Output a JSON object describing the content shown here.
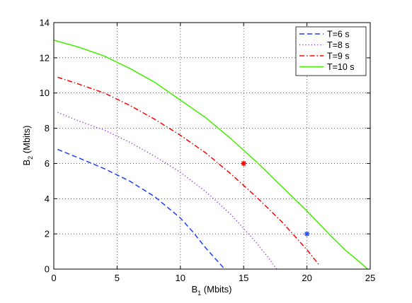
{
  "chart_data": {
    "type": "line",
    "title": "",
    "xlabel": {
      "main": "B",
      "sub": "1",
      "rest": " (Mbits)"
    },
    "ylabel": {
      "main": "B",
      "sub": "2",
      "rest": " (Mbits)"
    },
    "xlim": [
      0,
      25
    ],
    "ylim": [
      0,
      14
    ],
    "xticks": [
      "0",
      "5",
      "10",
      "15",
      "20",
      "25"
    ],
    "yticks": [
      "0",
      "2",
      "4",
      "6",
      "8",
      "10",
      "12",
      "14"
    ],
    "grid": true,
    "legend_position": "top-right",
    "series": [
      {
        "name": "T=6 s",
        "color": "#1f3fff",
        "style": "dashed",
        "x": [
          0.3,
          2,
          4,
          6,
          8,
          10,
          11,
          12,
          13,
          13.5
        ],
        "y": [
          6.8,
          6.3,
          5.7,
          5.0,
          4.1,
          2.9,
          2.1,
          1.2,
          0.4,
          0.0
        ]
      },
      {
        "name": "T=8 s",
        "color": "#9a30e0",
        "style": "dotted",
        "x": [
          0.3,
          2,
          4,
          6,
          8,
          10,
          12,
          14,
          15,
          16,
          17,
          17.6
        ],
        "y": [
          8.9,
          8.4,
          7.9,
          7.2,
          6.4,
          5.5,
          4.4,
          3.1,
          2.3,
          1.5,
          0.6,
          0.0
        ]
      },
      {
        "name": "T=9 s",
        "color": "#ff0000",
        "style": "dashdot",
        "x": [
          0.3,
          2,
          4,
          6,
          8,
          10,
          12,
          14,
          16,
          18,
          19,
          20,
          21
        ],
        "y": [
          10.9,
          10.5,
          10.0,
          9.3,
          8.5,
          7.6,
          6.6,
          5.4,
          4.1,
          2.7,
          1.9,
          1.1,
          0.2
        ]
      },
      {
        "name": "T=10 s",
        "color": "#44ee00",
        "style": "solid",
        "x": [
          0,
          2,
          4,
          6,
          8,
          10,
          12,
          14,
          16,
          18,
          20,
          22,
          23,
          24,
          24.8
        ],
        "y": [
          13.0,
          12.6,
          12.1,
          11.4,
          10.6,
          9.6,
          8.6,
          7.4,
          6.1,
          4.7,
          3.3,
          1.8,
          1.1,
          0.5,
          0.0
        ]
      }
    ],
    "markers": [
      {
        "x": 15,
        "y": 6,
        "color": "#ff0000",
        "symbol": "*"
      },
      {
        "x": 20,
        "y": 2,
        "color": "#2255ff",
        "symbol": "*"
      }
    ]
  }
}
